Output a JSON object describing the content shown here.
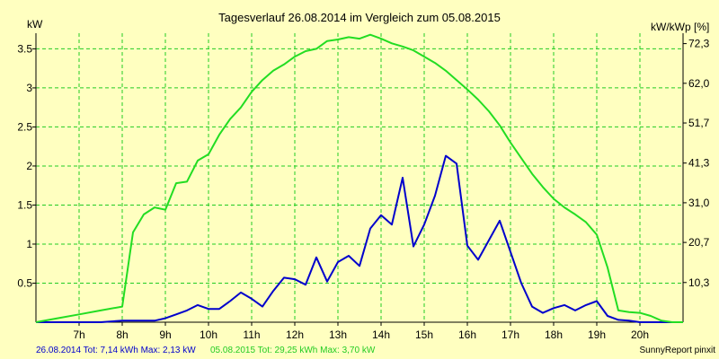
{
  "chart_data": {
    "type": "line",
    "title": "Tagesverlauf 26.08.2014 im Vergleich zum 05.08.2015",
    "ylabel": "kW",
    "y2label": "kW/kWp [%]",
    "ylim": [
      0,
      3.7
    ],
    "xlim": [
      6.0,
      21.0
    ],
    "grid": true,
    "x_ticks": [
      7,
      8,
      9,
      10,
      11,
      12,
      13,
      14,
      15,
      16,
      17,
      18,
      19,
      20
    ],
    "x_tick_labels": [
      "7h",
      "8h",
      "9h",
      "10h",
      "11h",
      "12h",
      "13h",
      "14h",
      "15h",
      "16h",
      "17h",
      "18h",
      "19h",
      "20h"
    ],
    "y_ticks": [
      0.5,
      1,
      1.5,
      2,
      2.5,
      3,
      3.5
    ],
    "y_tick_labels": [
      "0.5",
      "1",
      "1.5",
      "2",
      "2.5",
      "3",
      "3.5"
    ],
    "y2_ticks": [
      10.3,
      20.7,
      31.0,
      41.3,
      51.7,
      62.0,
      72.3
    ],
    "y2_tick_labels": [
      "10,3",
      "20,7",
      "31,0",
      "41,3",
      "51,7",
      "62,0",
      "72,3"
    ],
    "series": [
      {
        "name": "26.08.2014",
        "color": "#0000cc",
        "x": [
          6.0,
          7.0,
          7.5,
          8.0,
          8.5,
          8.75,
          9.0,
          9.25,
          9.5,
          9.75,
          10.0,
          10.25,
          10.5,
          10.75,
          11.0,
          11.25,
          11.5,
          11.75,
          12.0,
          12.25,
          12.5,
          12.75,
          13.0,
          13.25,
          13.5,
          13.75,
          14.0,
          14.25,
          14.5,
          14.75,
          15.0,
          15.25,
          15.5,
          15.75,
          16.0,
          16.25,
          16.5,
          16.75,
          17.0,
          17.25,
          17.5,
          17.75,
          18.0,
          18.25,
          18.5,
          18.75,
          19.0,
          19.25,
          19.5,
          19.75,
          20.0,
          20.25,
          20.5,
          21.0
        ],
        "values": [
          0,
          0,
          0,
          0.02,
          0.02,
          0.02,
          0.05,
          0.1,
          0.15,
          0.22,
          0.17,
          0.17,
          0.27,
          0.38,
          0.3,
          0.2,
          0.4,
          0.57,
          0.55,
          0.48,
          0.83,
          0.52,
          0.77,
          0.85,
          0.72,
          1.2,
          1.37,
          1.25,
          1.85,
          0.97,
          1.25,
          1.62,
          2.13,
          2.03,
          0.98,
          0.8,
          1.05,
          1.3,
          0.9,
          0.5,
          0.2,
          0.12,
          0.18,
          0.22,
          0.15,
          0.22,
          0.27,
          0.08,
          0.03,
          0.02,
          0,
          0,
          0,
          0
        ]
      },
      {
        "name": "05.08.2015",
        "color": "#22dd22",
        "x": [
          6.0,
          6.5,
          7.0,
          7.5,
          8.0,
          8.25,
          8.5,
          8.75,
          9.0,
          9.25,
          9.5,
          9.75,
          10.0,
          10.25,
          10.5,
          10.75,
          11.0,
          11.25,
          11.5,
          11.75,
          12.0,
          12.25,
          12.5,
          12.75,
          13.0,
          13.25,
          13.5,
          13.75,
          14.0,
          14.25,
          14.5,
          14.75,
          15.0,
          15.25,
          15.5,
          15.75,
          16.0,
          16.25,
          16.5,
          16.75,
          17.0,
          17.25,
          17.5,
          17.75,
          18.0,
          18.25,
          18.5,
          18.75,
          19.0,
          19.25,
          19.5,
          19.75,
          20.0,
          20.25,
          20.5,
          20.75,
          21.0
        ],
        "values": [
          0,
          0.05,
          0.1,
          0.15,
          0.2,
          1.15,
          1.38,
          1.47,
          1.44,
          1.78,
          1.8,
          2.07,
          2.15,
          2.4,
          2.6,
          2.75,
          2.95,
          3.1,
          3.22,
          3.3,
          3.4,
          3.47,
          3.5,
          3.6,
          3.62,
          3.65,
          3.63,
          3.68,
          3.63,
          3.57,
          3.53,
          3.48,
          3.4,
          3.32,
          3.22,
          3.1,
          2.98,
          2.85,
          2.7,
          2.52,
          2.3,
          2.1,
          1.9,
          1.73,
          1.58,
          1.47,
          1.38,
          1.28,
          1.12,
          0.7,
          0.15,
          0.13,
          0.12,
          0.08,
          0.02,
          0.0,
          0.0
        ]
      }
    ]
  },
  "footer": {
    "series1_summary": "26.08.2014 Tot: 7,14 kWh Max: 2,13 kW",
    "series2_summary": "05.08.2015 Tot: 29,25 kWh Max: 3,70 kW",
    "credit": "SunnyReport pinxit"
  }
}
